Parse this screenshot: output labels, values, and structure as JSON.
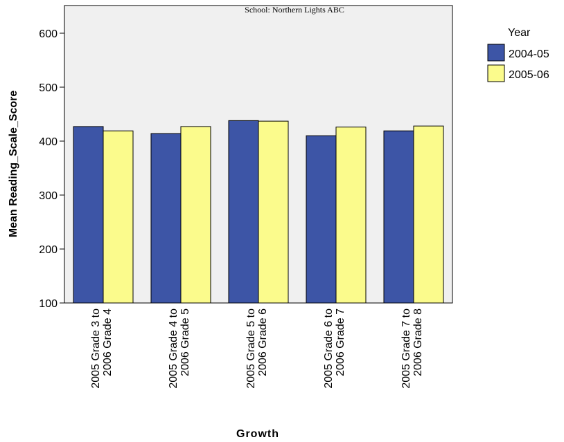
{
  "chart_data": {
    "type": "bar",
    "title": "School: Northern Lights ABC",
    "xlabel": "Growth",
    "ylabel": "Mean Reading_Scale_Score",
    "ylim": [
      100,
      620
    ],
    "yticks": [
      100,
      200,
      300,
      400,
      500,
      600
    ],
    "grid": false,
    "legend": {
      "title": "Year",
      "position": "top-right"
    },
    "categories": [
      [
        "2005 Grade 3 to",
        "2006 Grade 4"
      ],
      [
        "2005 Grade 4 to",
        "2006 Grade 5"
      ],
      [
        "2005 Grade 5 to",
        "2006 Grade 6"
      ],
      [
        "2005 Grade 6 to",
        "2006 Grade 7"
      ],
      [
        "2005 Grade 7 to",
        "2006 Grade 8"
      ]
    ],
    "series": [
      {
        "name": "2004-05",
        "color": "#3d55a6",
        "values": [
          427,
          414,
          438,
          410,
          419
        ]
      },
      {
        "name": "2005-06",
        "color": "#fbfb8c",
        "values": [
          419,
          427,
          437,
          426,
          428
        ]
      }
    ]
  }
}
